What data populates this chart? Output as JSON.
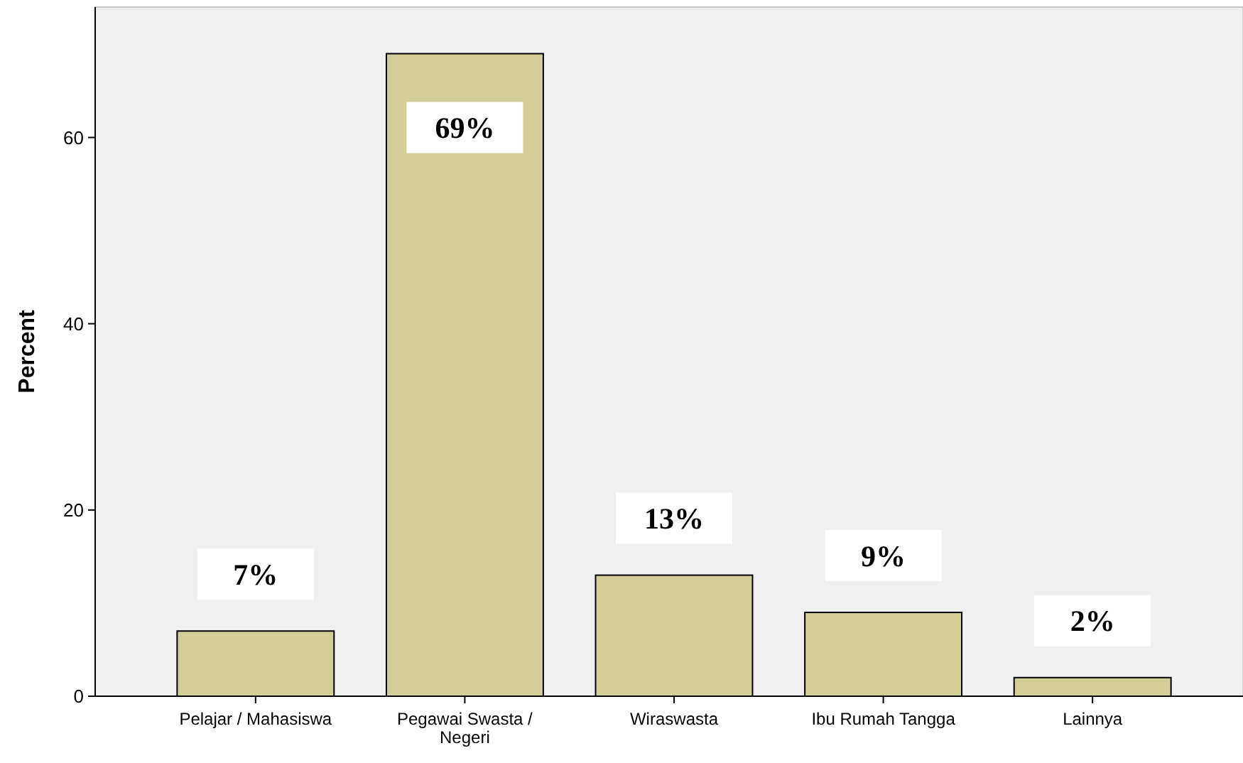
{
  "chart_data": {
    "type": "bar",
    "ylabel": "Percent",
    "categories": [
      "Pelajar / Mahasiswa",
      "Pegawai Swasta / Negeri",
      "Wiraswasta",
      "Ibu Rumah Tangga",
      "Lainnya"
    ],
    "values": [
      7,
      69,
      13,
      9,
      2
    ],
    "value_labels": [
      "7%",
      "69%",
      "13%",
      "9%",
      "2%"
    ],
    "color": "#d3ce97",
    "ylim": [
      0,
      74
    ],
    "yticks": [
      0,
      20,
      40,
      60
    ],
    "grid": false
  }
}
